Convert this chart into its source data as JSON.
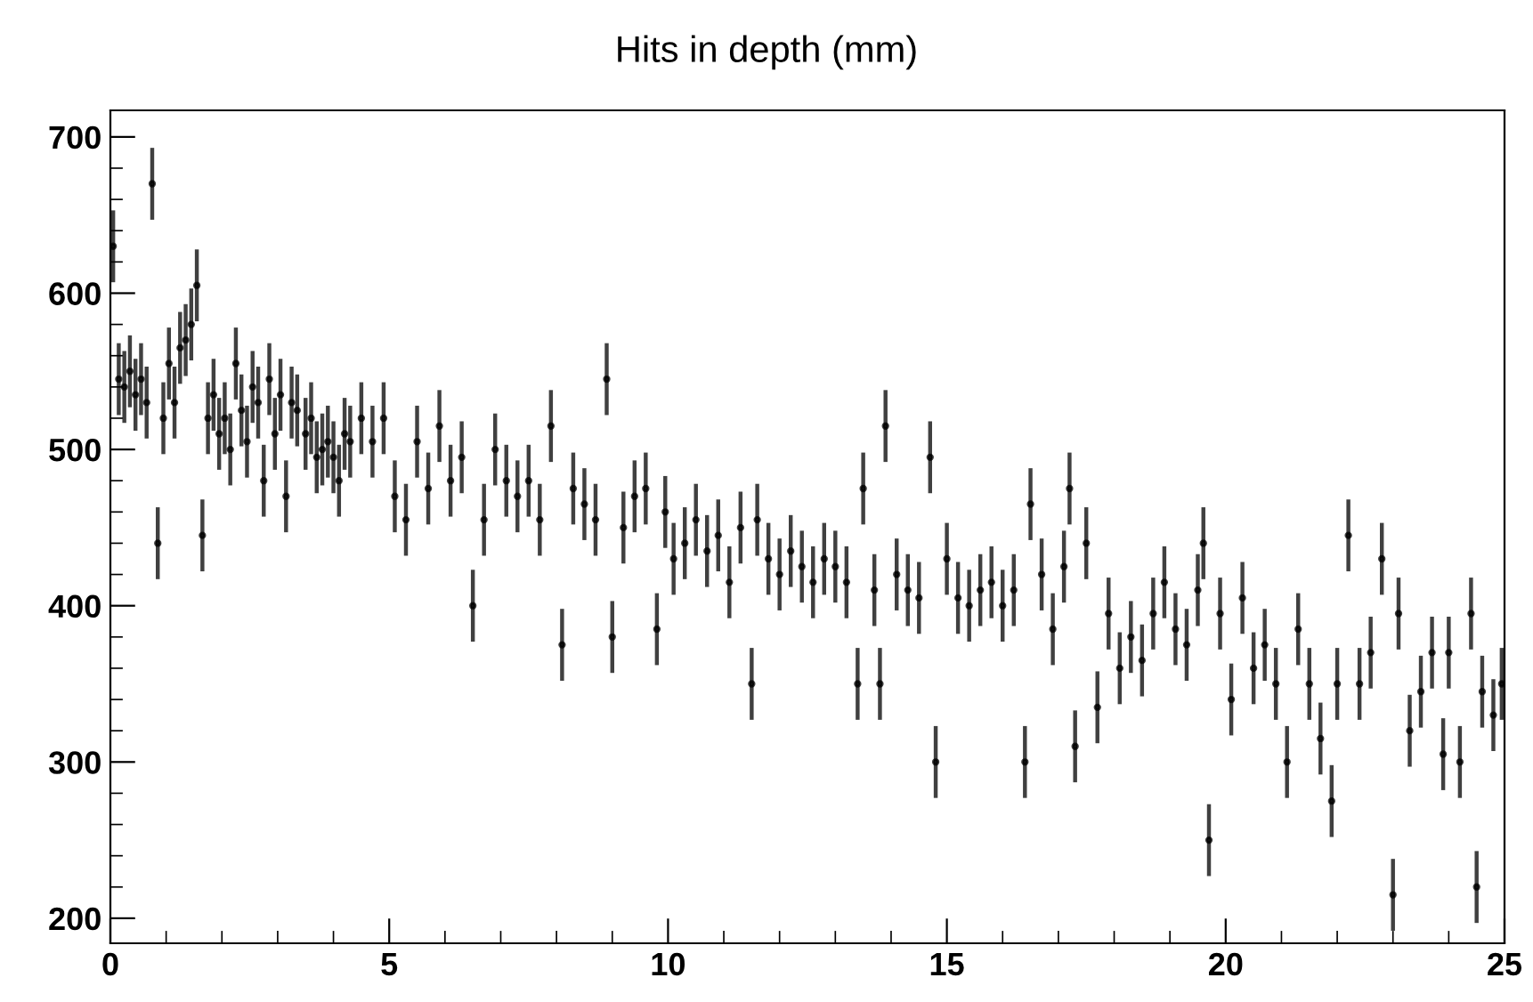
{
  "chart_data": {
    "type": "scatter",
    "title": "Hits in depth (mm)",
    "marker": "circle",
    "grid": false,
    "legend": false,
    "xlim": [
      0,
      25
    ],
    "ylim": [
      184,
      717
    ],
    "xticks": [
      0,
      5,
      10,
      15,
      20,
      25
    ],
    "yticks": [
      200,
      300,
      400,
      500,
      600,
      700
    ],
    "series": [
      {
        "color": "#000000",
        "x": [
          0.05,
          0.15,
          0.25,
          0.35,
          0.45,
          0.55,
          0.65,
          0.75,
          0.85,
          0.95,
          1.05,
          1.15,
          1.25,
          1.35,
          1.45,
          1.55,
          1.65,
          1.75,
          1.85,
          1.95,
          2.05,
          2.15,
          2.25,
          2.35,
          2.45,
          2.55,
          2.65,
          2.75,
          2.85,
          2.95,
          3.05,
          3.15,
          3.25,
          3.35,
          3.5,
          3.6,
          3.7,
          3.8,
          3.9,
          4.0,
          4.1,
          4.2,
          4.3,
          4.5,
          4.7,
          4.9,
          5.1,
          5.3,
          5.5,
          5.7,
          5.9,
          6.1,
          6.3,
          6.5,
          6.7,
          6.9,
          7.1,
          7.3,
          7.5,
          7.7,
          7.9,
          8.1,
          8.3,
          8.5,
          8.7,
          8.9,
          9.0,
          9.2,
          9.4,
          9.6,
          9.8,
          9.95,
          10.1,
          10.3,
          10.5,
          10.7,
          10.9,
          11.1,
          11.3,
          11.5,
          11.6,
          11.8,
          12.0,
          12.2,
          12.4,
          12.6,
          12.8,
          13.0,
          13.2,
          13.4,
          13.5,
          13.7,
          13.8,
          13.9,
          14.1,
          14.3,
          14.5,
          14.7,
          14.8,
          15.0,
          15.2,
          15.4,
          15.6,
          15.8,
          16.0,
          16.2,
          16.4,
          16.5,
          16.7,
          16.9,
          17.1,
          17.2,
          17.3,
          17.5,
          17.7,
          17.9,
          18.1,
          18.3,
          18.5,
          18.7,
          18.9,
          19.1,
          19.3,
          19.5,
          19.6,
          19.7,
          19.9,
          20.1,
          20.3,
          20.5,
          20.7,
          20.9,
          21.1,
          21.3,
          21.5,
          21.7,
          21.9,
          22.0,
          22.2,
          22.4,
          22.6,
          22.8,
          23.0,
          23.1,
          23.3,
          23.5,
          23.7,
          23.9,
          24.0,
          24.2,
          24.4,
          24.5,
          24.6,
          24.8,
          24.95
        ],
        "values": [
          630,
          545,
          540,
          550,
          535,
          545,
          530,
          670,
          440,
          520,
          555,
          530,
          565,
          570,
          580,
          605,
          445,
          520,
          535,
          510,
          520,
          500,
          555,
          525,
          505,
          540,
          530,
          480,
          545,
          510,
          535,
          470,
          530,
          525,
          510,
          520,
          495,
          500,
          505,
          495,
          480,
          510,
          505,
          520,
          505,
          520,
          470,
          455,
          505,
          475,
          515,
          480,
          495,
          400,
          455,
          500,
          480,
          470,
          480,
          455,
          515,
          375,
          475,
          465,
          455,
          545,
          380,
          450,
          470,
          475,
          385,
          460,
          430,
          440,
          455,
          435,
          445,
          415,
          450,
          350,
          455,
          430,
          420,
          435,
          425,
          415,
          430,
          425,
          415,
          350,
          475,
          410,
          350,
          515,
          420,
          410,
          405,
          495,
          300,
          430,
          405,
          400,
          410,
          415,
          400,
          410,
          300,
          465,
          420,
          385,
          425,
          475,
          310,
          440,
          335,
          395,
          360,
          380,
          365,
          395,
          415,
          385,
          375,
          410,
          440,
          250,
          395,
          340,
          405,
          360,
          375,
          350,
          300,
          385,
          350,
          315,
          275,
          350,
          445,
          350,
          370,
          430,
          215,
          395,
          320,
          345,
          370,
          305,
          370,
          300,
          395,
          220,
          345,
          330,
          350
        ],
        "errors": [
          23,
          23,
          23,
          23,
          23,
          23,
          23,
          23,
          23,
          23,
          23,
          23,
          23,
          23,
          23,
          23,
          23,
          23,
          23,
          23,
          23,
          23,
          23,
          23,
          23,
          23,
          23,
          23,
          23,
          23,
          23,
          23,
          23,
          23,
          23,
          23,
          23,
          23,
          23,
          23,
          23,
          23,
          23,
          23,
          23,
          23,
          23,
          23,
          23,
          23,
          23,
          23,
          23,
          23,
          23,
          23,
          23,
          23,
          23,
          23,
          23,
          23,
          23,
          23,
          23,
          23,
          23,
          23,
          23,
          23,
          23,
          23,
          23,
          23,
          23,
          23,
          23,
          23,
          23,
          23,
          23,
          23,
          23,
          23,
          23,
          23,
          23,
          23,
          23,
          23,
          23,
          23,
          23,
          23,
          23,
          23,
          23,
          23,
          23,
          23,
          23,
          23,
          23,
          23,
          23,
          23,
          23,
          23,
          23,
          23,
          23,
          23,
          23,
          23,
          23,
          23,
          23,
          23,
          23,
          23,
          23,
          23,
          23,
          23,
          23,
          23,
          23,
          23,
          23,
          23,
          23,
          23,
          23,
          23,
          23,
          23,
          23,
          23,
          23,
          23,
          23,
          23,
          23,
          23,
          23,
          23,
          23,
          23,
          23,
          23,
          23,
          23,
          23,
          23,
          23
        ]
      }
    ]
  }
}
